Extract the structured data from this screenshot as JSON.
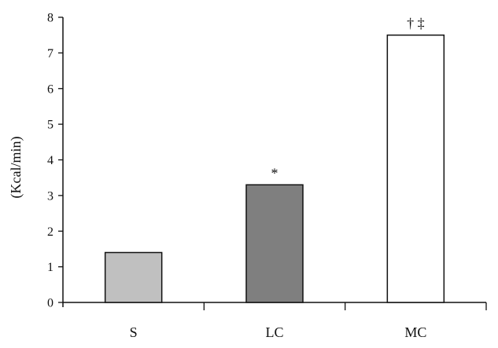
{
  "chart_data": {
    "type": "bar",
    "categories": [
      "S",
      "LC",
      "MC"
    ],
    "values": [
      1.4,
      3.3,
      7.5
    ],
    "annotations": [
      "",
      "*",
      "† ‡"
    ],
    "ylabel": "(Kcal/min)",
    "xlabel": "",
    "ylim": [
      0,
      8
    ],
    "yticks": [
      "0",
      "1",
      "2",
      "3",
      "4",
      "5",
      "6",
      "7",
      "8"
    ],
    "grid": false,
    "legend": "none",
    "bar_colors": [
      "#c0c0c0",
      "#7f7f7f",
      "#ffffff"
    ],
    "bar_edge_color": "#111111"
  }
}
